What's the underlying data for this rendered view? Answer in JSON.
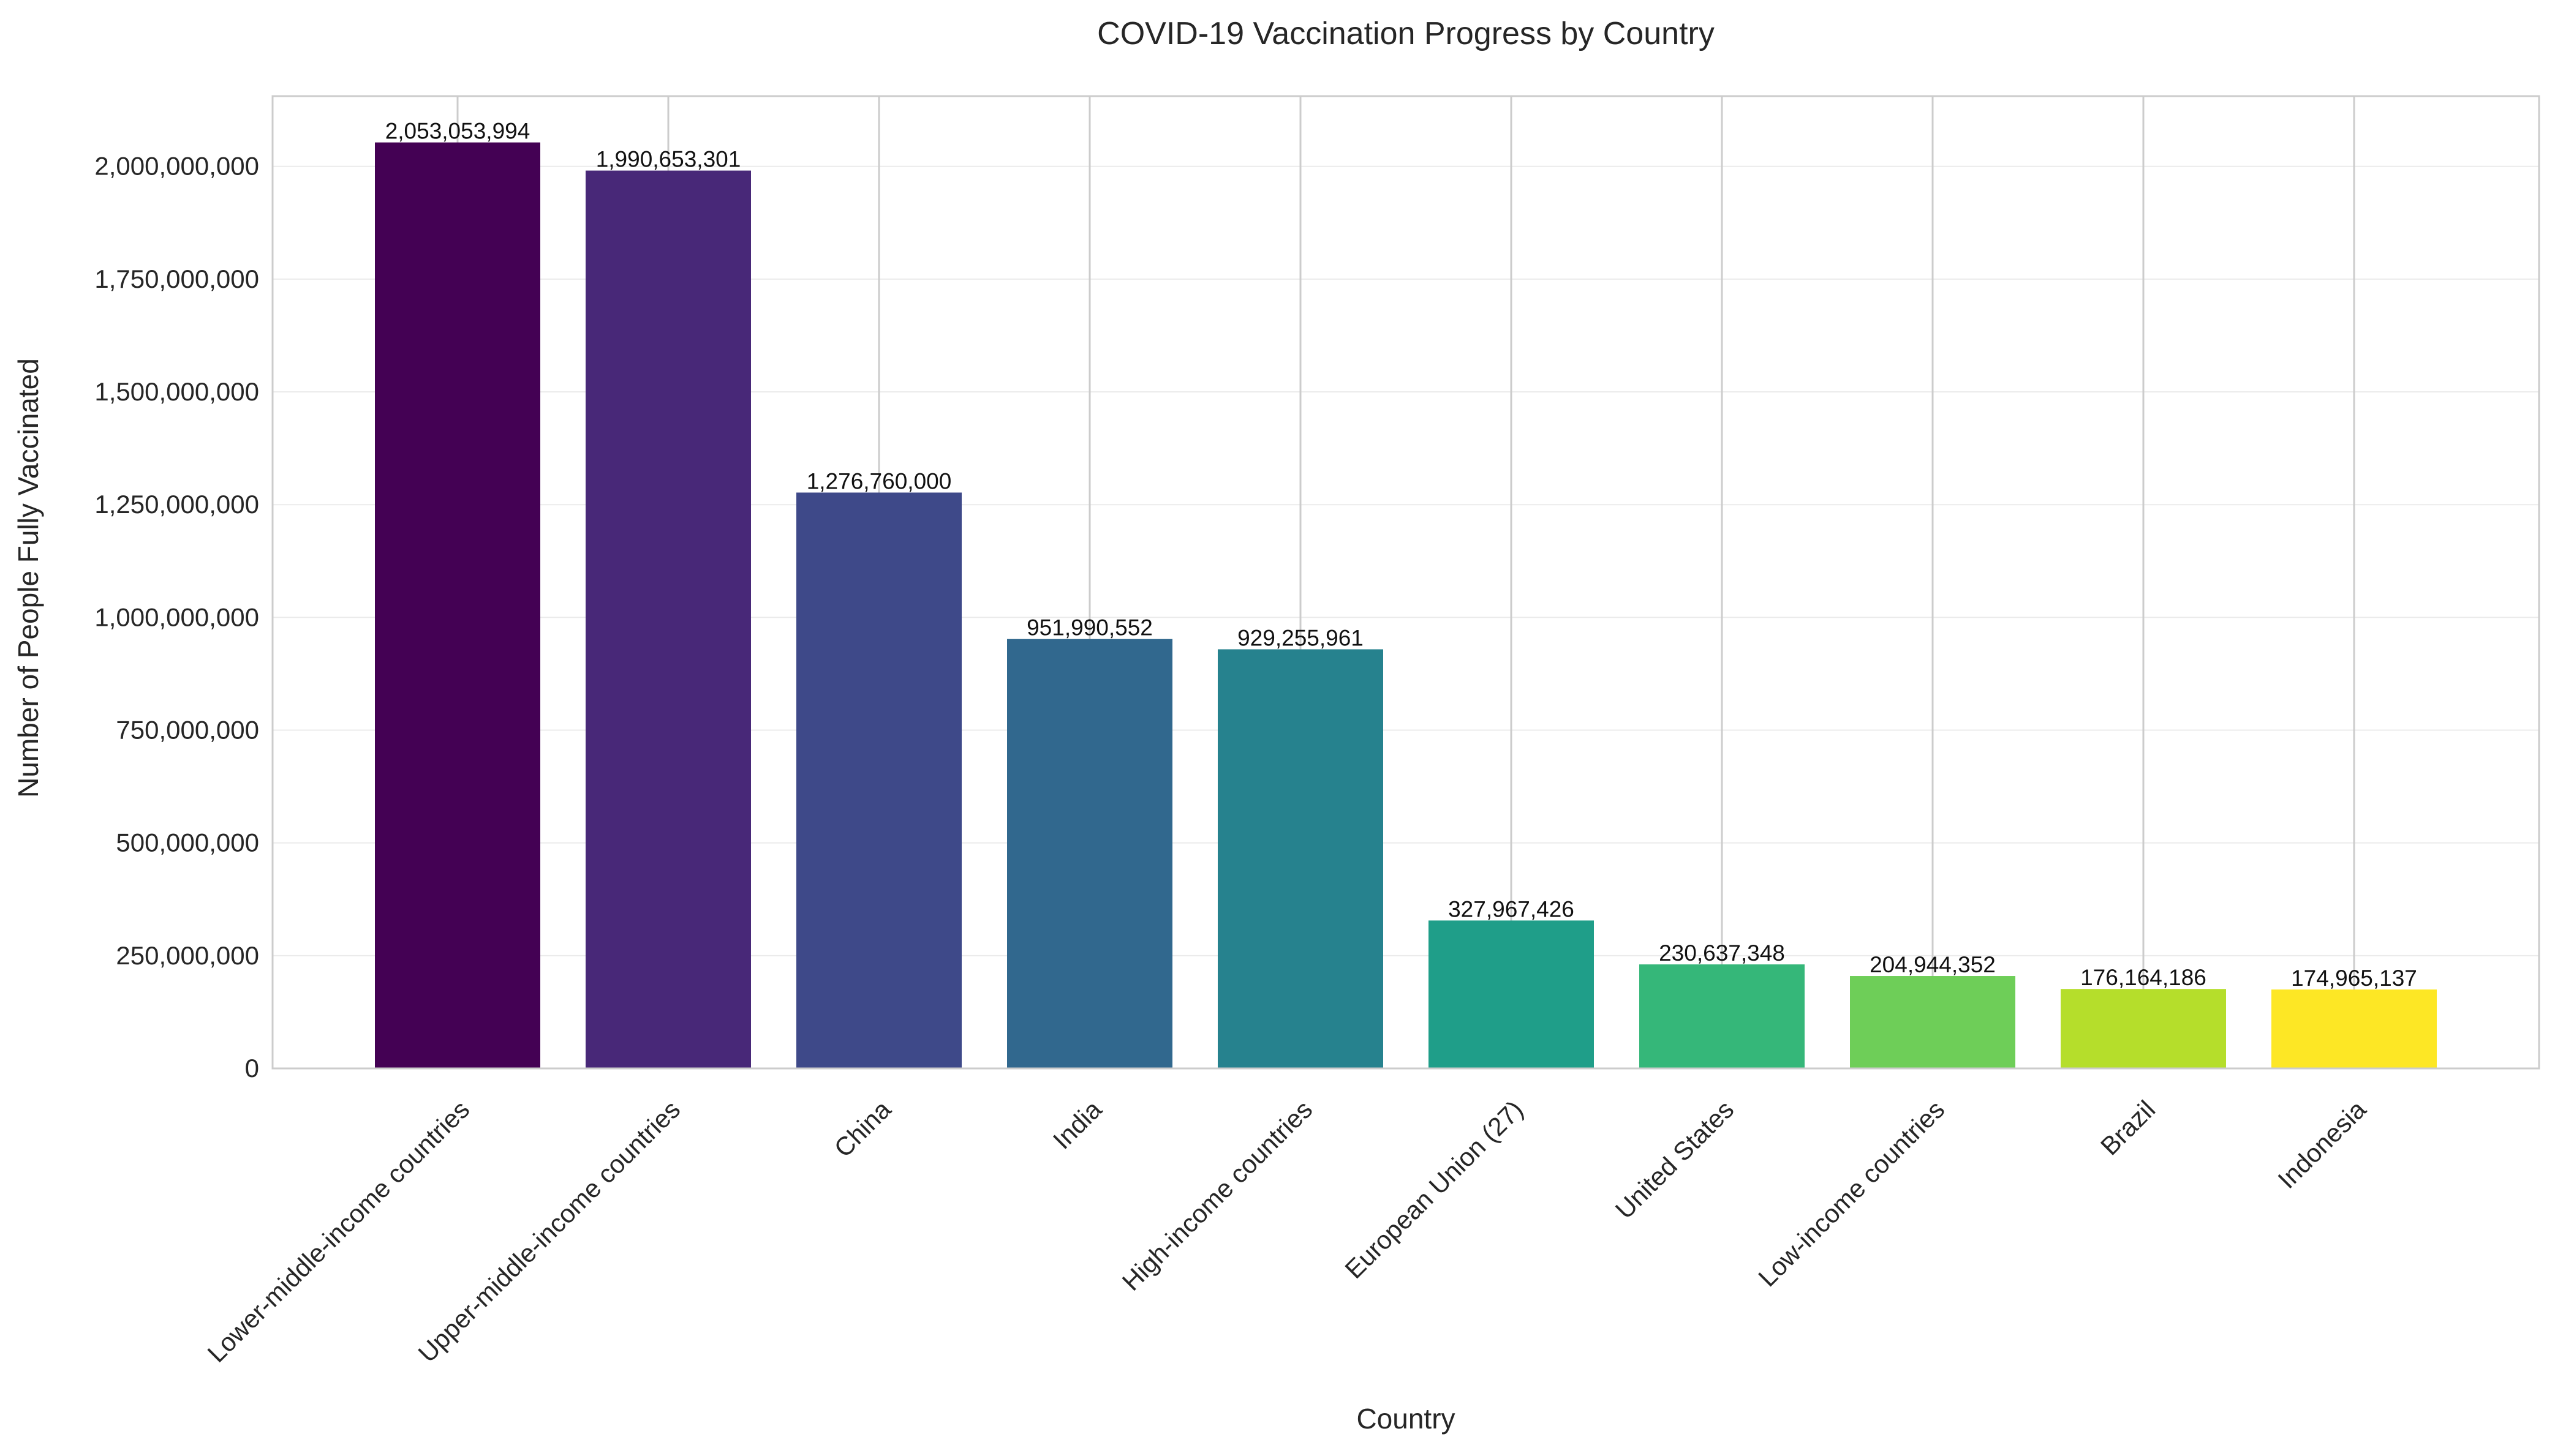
{
  "chart_data": {
    "type": "bar",
    "title": "COVID-19 Vaccination Progress by Country",
    "xlabel": "Country",
    "ylabel": "Number of People Fully Vaccinated",
    "categories": [
      "Lower-middle-income countries",
      "Upper-middle-income countries",
      "China",
      "India",
      "High-income countries",
      "European Union (27)",
      "United States",
      "Low-income countries",
      "Brazil",
      "Indonesia"
    ],
    "values": [
      2053053994,
      1990653301,
      1276760000,
      951990552,
      929255961,
      327967426,
      230637348,
      204944352,
      176164186,
      174965137
    ],
    "data_labels": [
      "2,053,053,994",
      "1,990,653,301",
      "1,276,760,000",
      "951,990,552",
      "929,255,961",
      "327,967,426",
      "230,637,348",
      "204,944,352",
      "176,164,186",
      "174,965,137"
    ],
    "yticks": [
      0,
      250000000,
      500000000,
      750000000,
      1000000000,
      1250000000,
      1500000000,
      1750000000,
      2000000000
    ],
    "ytick_labels": [
      "0",
      "250,000,000",
      "500,000,000",
      "750,000,000",
      "1,000,000,000",
      "1,250,000,000",
      "1,500,000,000",
      "1,750,000,000",
      "2,000,000,000"
    ],
    "ylim": [
      0,
      2155706693
    ],
    "grid": true,
    "colors": [
      "#440154",
      "#482878",
      "#3e4989",
      "#31688e",
      "#26828e",
      "#1f9e89",
      "#35b779",
      "#6ece58",
      "#b5de2b",
      "#fde725"
    ]
  }
}
